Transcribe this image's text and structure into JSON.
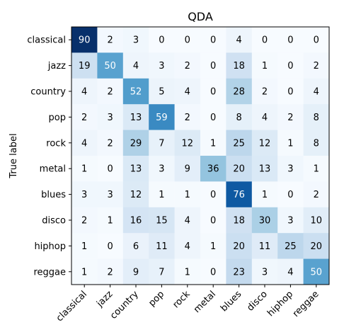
{
  "chart_data": {
    "type": "heatmap",
    "title": "QDA",
    "ylabel": "True label",
    "xlabel": "",
    "colormap": "Blues",
    "vmin": 0,
    "vmax": 90,
    "x_categories": [
      "classical",
      "jazz",
      "country",
      "pop",
      "rock",
      "metal",
      "blues",
      "disco",
      "hiphop",
      "reggae"
    ],
    "y_categories": [
      "classical",
      "jazz",
      "country",
      "pop",
      "rock",
      "metal",
      "blues",
      "disco",
      "hiphop",
      "reggae"
    ],
    "values": [
      [
        90,
        2,
        3,
        0,
        0,
        0,
        4,
        0,
        0,
        0
      ],
      [
        19,
        50,
        4,
        3,
        2,
        0,
        18,
        1,
        0,
        2
      ],
      [
        4,
        2,
        52,
        5,
        4,
        0,
        28,
        2,
        0,
        4
      ],
      [
        2,
        3,
        13,
        59,
        2,
        0,
        8,
        4,
        2,
        8
      ],
      [
        4,
        2,
        29,
        7,
        12,
        1,
        25,
        12,
        1,
        8
      ],
      [
        1,
        0,
        13,
        3,
        9,
        36,
        20,
        13,
        3,
        1
      ],
      [
        3,
        3,
        12,
        1,
        1,
        0,
        76,
        1,
        0,
        2
      ],
      [
        2,
        1,
        16,
        15,
        4,
        0,
        18,
        30,
        3,
        10
      ],
      [
        1,
        0,
        6,
        11,
        4,
        1,
        20,
        11,
        25,
        20
      ],
      [
        1,
        2,
        9,
        7,
        1,
        0,
        23,
        3,
        4,
        50
      ]
    ],
    "grid": false
  }
}
